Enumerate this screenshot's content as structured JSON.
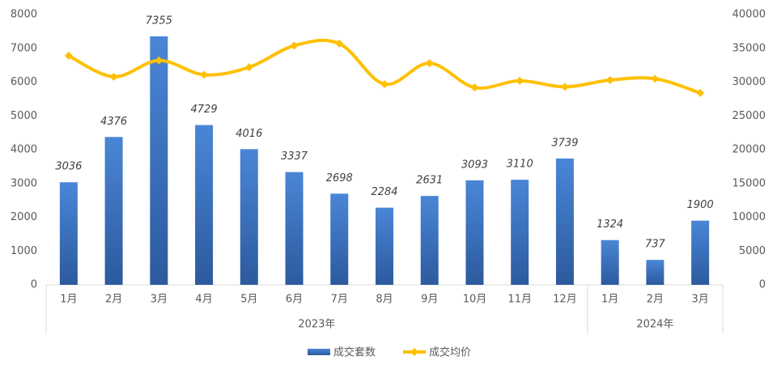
{
  "chart_data": {
    "type": "bar-line",
    "groups": [
      {
        "name": "2023年",
        "categories": [
          "1月",
          "2月",
          "3月",
          "4月",
          "5月",
          "6月",
          "7月",
          "8月",
          "9月",
          "10月",
          "11月",
          "12月"
        ]
      },
      {
        "name": "2024年",
        "categories": [
          "1月",
          "2月",
          "3月"
        ]
      }
    ],
    "series": [
      {
        "name": "成交套数",
        "type": "bar",
        "color": "#3a70c0",
        "axis": "y",
        "values": [
          3036,
          4376,
          7355,
          4729,
          4016,
          3337,
          2698,
          2284,
          2631,
          3093,
          3110,
          3739,
          1324,
          737,
          1900
        ]
      },
      {
        "name": "成交均价",
        "type": "line",
        "color": "#ffc000",
        "axis": "y2",
        "values": [
          33900,
          30800,
          33200,
          31100,
          32200,
          35400,
          35700,
          29700,
          32800,
          29200,
          30200,
          29300,
          30300,
          30500,
          28400
        ]
      }
    ],
    "ylim": [
      0,
      8000
    ],
    "yticks": [
      0,
      1000,
      2000,
      3000,
      4000,
      5000,
      6000,
      7000,
      8000
    ],
    "y2lim": [
      0,
      40000
    ],
    "y2ticks": [
      0,
      5000,
      10000,
      15000,
      20000,
      25000,
      30000,
      35000,
      40000
    ],
    "legend": "bottom"
  }
}
